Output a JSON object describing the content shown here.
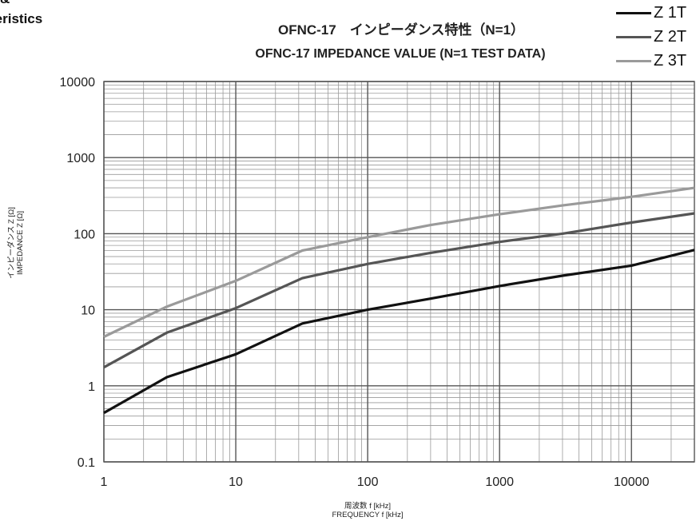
{
  "header": {
    "corner_text_1": "&",
    "corner_text_2": "teristics"
  },
  "chart_data": {
    "type": "line",
    "title": "OFNC-17　インピーダンス特性（N=1）",
    "subtitle": "OFNC-17  IMPEDANCE VALUE (N=1 TEST DATA)",
    "xlabel": "周波数 f [kHz]",
    "xlabel_en": "FREQUENCY f [kHz]",
    "ylabel": "インピーダンス Z [Ω]",
    "ylabel_en": "IMPEDANCE Z [Ω]",
    "x_scale": "log",
    "y_scale": "log",
    "xlim": [
      1,
      30000
    ],
    "ylim": [
      0.1,
      10000
    ],
    "x_ticks": [
      "1",
      "10",
      "100",
      "1000",
      "10000"
    ],
    "y_ticks": [
      "0.1",
      "1",
      "10",
      "100",
      "1000",
      "10000"
    ],
    "grid": true,
    "legend_position": "top-right",
    "series": [
      {
        "name": "Z 1T",
        "color": "#111111",
        "x": [
          1,
          3,
          10,
          32,
          100,
          300,
          1000,
          3000,
          10000,
          30000
        ],
        "y": [
          0.44,
          1.3,
          2.6,
          6.6,
          10,
          14,
          20.5,
          28,
          38,
          61
        ]
      },
      {
        "name": "Z 2T",
        "color": "#555555",
        "x": [
          1,
          3,
          10,
          32,
          100,
          300,
          1000,
          3000,
          10000,
          30000
        ],
        "y": [
          1.75,
          5,
          10.5,
          26,
          40,
          56,
          78,
          100,
          140,
          185
        ]
      },
      {
        "name": "Z 3T",
        "color": "#9a9a9a",
        "x": [
          1,
          3,
          10,
          32,
          100,
          300,
          1000,
          3000,
          10000,
          30000
        ],
        "y": [
          4.4,
          11,
          24,
          60,
          90,
          130,
          180,
          235,
          305,
          400
        ]
      }
    ]
  }
}
